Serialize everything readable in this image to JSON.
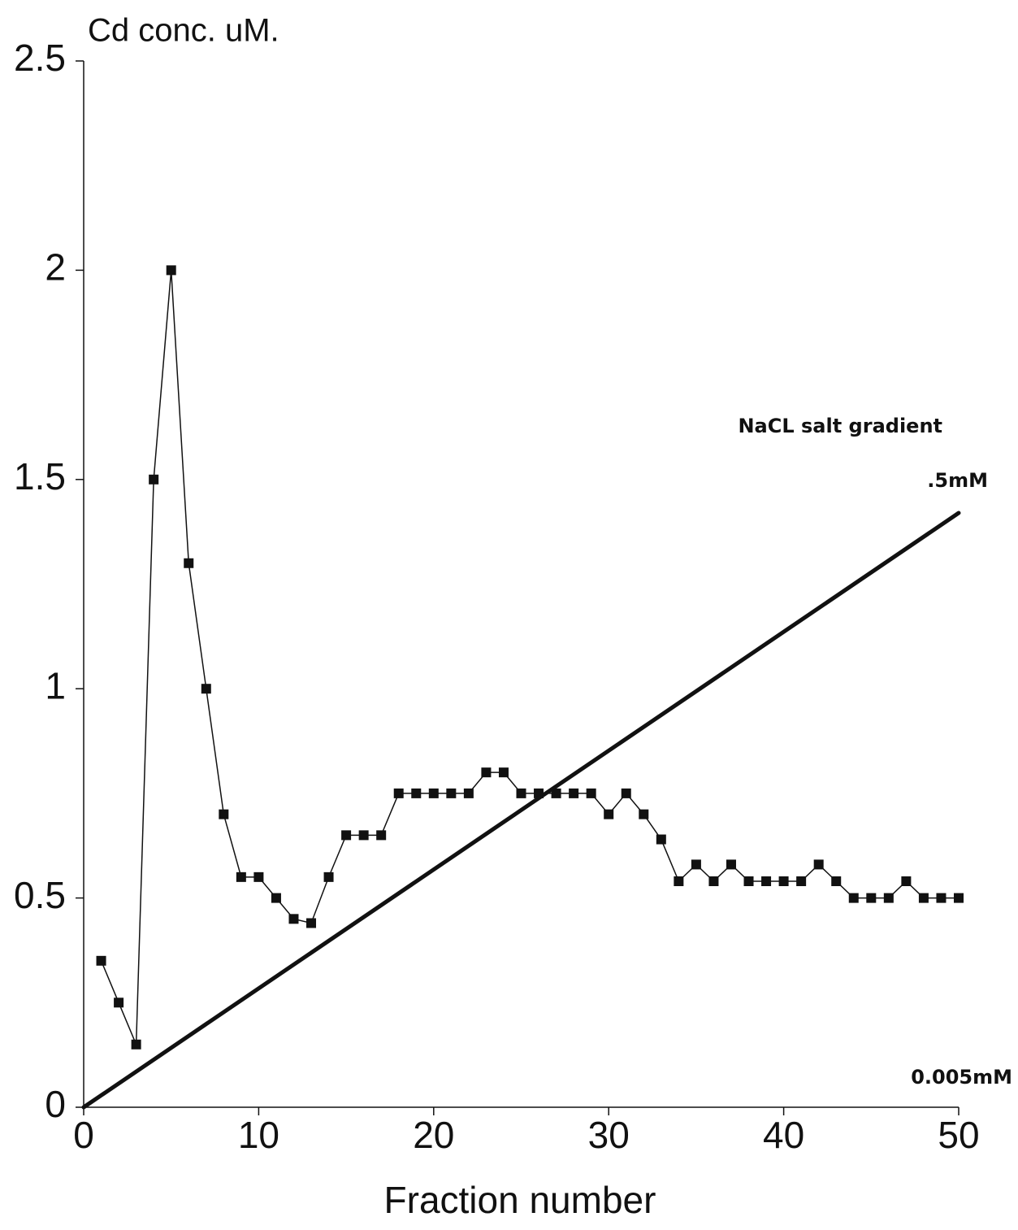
{
  "chart_data": {
    "type": "line",
    "y_label": "Cd conc. uM.",
    "x_label": "Fraction number",
    "xlim": [
      0,
      50
    ],
    "ylim": [
      0,
      2.5
    ],
    "xticks": [
      0,
      10,
      20,
      30,
      40,
      50
    ],
    "yticks": [
      0,
      0.5,
      1,
      1.5,
      2,
      2.5
    ],
    "series": [
      {
        "color": "#111111",
        "marker": "square",
        "width": 1.5,
        "x": [
          1,
          2,
          3,
          4,
          5,
          6,
          7,
          8,
          9,
          10,
          11,
          12,
          13,
          14,
          15,
          16,
          17,
          18,
          19,
          20,
          21,
          22,
          23,
          24,
          25,
          26,
          27,
          28,
          29,
          30,
          31,
          32,
          33,
          34,
          35,
          36,
          37,
          38,
          39,
          40,
          41,
          42,
          43,
          44,
          45,
          46,
          47,
          48,
          49,
          50
        ],
        "values": [
          0.35,
          0.25,
          0.15,
          1.5,
          2.0,
          1.3,
          1.0,
          0.7,
          0.55,
          0.55,
          0.5,
          0.45,
          0.44,
          0.55,
          0.65,
          0.65,
          0.65,
          0.75,
          0.75,
          0.75,
          0.75,
          0.75,
          0.8,
          0.8,
          0.75,
          0.75,
          0.75,
          0.75,
          0.75,
          0.7,
          0.75,
          0.7,
          0.64,
          0.54,
          0.58,
          0.54,
          0.58,
          0.54,
          0.54,
          0.54,
          0.54,
          0.58,
          0.54,
          0.5,
          0.5,
          0.5,
          0.54,
          0.5,
          0.5,
          0.5
        ]
      },
      {
        "name": "NaCL salt gradient",
        "color": "#111111",
        "marker": "none",
        "width": 5,
        "x": [
          0,
          50
        ],
        "values": [
          0,
          1.42
        ]
      }
    ],
    "annotations": [
      ".5mM",
      "0.005mM"
    ]
  }
}
